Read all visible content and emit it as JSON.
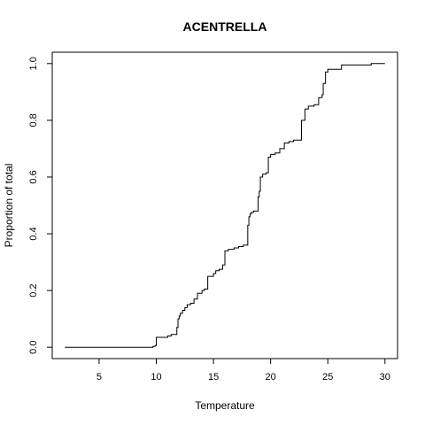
{
  "chart_data": {
    "type": "line",
    "title": "ACENTRELLA",
    "xlabel": "Temperature",
    "ylabel": "Proportion of total",
    "xlim": [
      0.9,
      31.1
    ],
    "ylim": [
      -0.04,
      1.04
    ],
    "xticks": [
      5,
      10,
      15,
      20,
      25,
      30
    ],
    "yticks": [
      0.0,
      0.2,
      0.4,
      0.6,
      0.8,
      1.0
    ],
    "grid": false,
    "legend": "none",
    "series": [
      {
        "step": "post",
        "color": "#000000",
        "x": [
          2.0,
          9.7,
          9.9,
          10.0,
          11.0,
          11.3,
          11.8,
          11.9,
          12.0,
          12.1,
          12.3,
          12.5,
          12.7,
          13.0,
          13.3,
          13.6,
          14.0,
          14.2,
          14.5,
          15.0,
          15.2,
          15.5,
          15.8,
          16.0,
          16.3,
          16.8,
          17.2,
          17.6,
          18.0,
          18.1,
          18.2,
          18.3,
          18.5,
          18.9,
          19.0,
          19.1,
          19.3,
          19.6,
          19.8,
          20.0,
          20.4,
          20.8,
          21.2,
          21.6,
          22.0,
          22.7,
          23.0,
          23.3,
          23.8,
          24.2,
          24.5,
          24.6,
          24.8,
          25.0,
          26.2,
          28.8,
          29.0,
          30.0
        ],
        "y": [
          0.0,
          0.003,
          0.006,
          0.035,
          0.04,
          0.045,
          0.07,
          0.1,
          0.11,
          0.12,
          0.13,
          0.14,
          0.15,
          0.155,
          0.17,
          0.19,
          0.2,
          0.205,
          0.25,
          0.26,
          0.27,
          0.275,
          0.29,
          0.34,
          0.345,
          0.35,
          0.355,
          0.36,
          0.43,
          0.46,
          0.47,
          0.475,
          0.48,
          0.53,
          0.55,
          0.6,
          0.61,
          0.615,
          0.67,
          0.68,
          0.685,
          0.7,
          0.72,
          0.725,
          0.73,
          0.8,
          0.84,
          0.85,
          0.855,
          0.88,
          0.89,
          0.93,
          0.97,
          0.98,
          0.995,
          1.0,
          1.0,
          1.0
        ]
      }
    ]
  }
}
